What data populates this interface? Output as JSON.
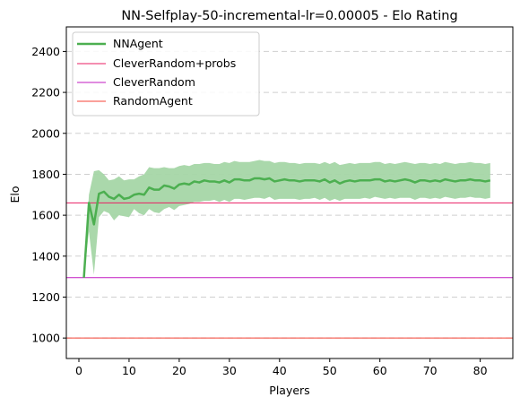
{
  "chart_data": {
    "type": "line",
    "title": "NN-Selfplay-50-incremental-lr=0.00005 - Elo Rating",
    "xlabel": "Players",
    "ylabel": "Elo",
    "xlim": [
      -2.5,
      86.5
    ],
    "ylim": [
      900,
      2520
    ],
    "xticks": [
      0,
      10,
      20,
      30,
      40,
      50,
      60,
      70,
      80
    ],
    "yticks": [
      1000,
      1200,
      1400,
      1600,
      1800,
      2000,
      2200,
      2400
    ],
    "grid": "horizontal-dashed",
    "legend_position": "top-left",
    "series": [
      {
        "name": "NNAgent",
        "color": "#4caf50",
        "band_color": "#a5d6a7",
        "x": [
          1,
          2,
          3,
          4,
          5,
          6,
          7,
          8,
          9,
          10,
          11,
          12,
          13,
          14,
          15,
          16,
          17,
          18,
          19,
          20,
          21,
          22,
          23,
          24,
          25,
          26,
          27,
          28,
          29,
          30,
          31,
          32,
          33,
          34,
          35,
          36,
          37,
          38,
          39,
          40,
          41,
          42,
          43,
          44,
          45,
          46,
          47,
          48,
          49,
          50,
          51,
          52,
          53,
          54,
          55,
          56,
          57,
          58,
          59,
          60,
          61,
          62,
          63,
          64,
          65,
          66,
          67,
          68,
          69,
          70,
          71,
          72,
          73,
          74,
          75,
          76,
          77,
          78,
          79,
          80,
          81,
          82
        ],
        "values": [
          1295,
          1660,
          1555,
          1705,
          1715,
          1690,
          1680,
          1700,
          1680,
          1685,
          1700,
          1705,
          1700,
          1735,
          1725,
          1725,
          1745,
          1740,
          1730,
          1750,
          1755,
          1750,
          1765,
          1760,
          1770,
          1765,
          1765,
          1760,
          1770,
          1760,
          1775,
          1775,
          1770,
          1770,
          1780,
          1780,
          1775,
          1780,
          1765,
          1770,
          1775,
          1770,
          1770,
          1765,
          1770,
          1770,
          1770,
          1765,
          1775,
          1760,
          1770,
          1755,
          1765,
          1770,
          1765,
          1770,
          1770,
          1770,
          1775,
          1775,
          1765,
          1770,
          1765,
          1770,
          1775,
          1770,
          1760,
          1770,
          1770,
          1765,
          1770,
          1765,
          1775,
          1770,
          1765,
          1770,
          1770,
          1775,
          1770,
          1770,
          1765,
          1770
        ],
        "lower": [
          1295,
          1520,
          1310,
          1590,
          1620,
          1610,
          1575,
          1600,
          1595,
          1590,
          1630,
          1610,
          1600,
          1630,
          1615,
          1610,
          1630,
          1640,
          1625,
          1645,
          1650,
          1655,
          1665,
          1665,
          1670,
          1670,
          1675,
          1665,
          1675,
          1665,
          1680,
          1680,
          1675,
          1680,
          1685,
          1685,
          1680,
          1690,
          1675,
          1680,
          1680,
          1680,
          1680,
          1675,
          1680,
          1680,
          1685,
          1675,
          1685,
          1670,
          1680,
          1670,
          1680,
          1680,
          1680,
          1680,
          1685,
          1680,
          1690,
          1685,
          1680,
          1685,
          1680,
          1685,
          1685,
          1685,
          1675,
          1685,
          1685,
          1680,
          1685,
          1680,
          1690,
          1685,
          1680,
          1685,
          1685,
          1690,
          1685,
          1685,
          1680,
          1685
        ],
        "upper": [
          1295,
          1700,
          1815,
          1820,
          1800,
          1770,
          1775,
          1790,
          1770,
          1775,
          1775,
          1790,
          1800,
          1835,
          1830,
          1830,
          1835,
          1830,
          1830,
          1840,
          1845,
          1840,
          1850,
          1850,
          1855,
          1855,
          1850,
          1850,
          1860,
          1855,
          1865,
          1860,
          1860,
          1860,
          1865,
          1870,
          1865,
          1865,
          1855,
          1860,
          1860,
          1855,
          1855,
          1850,
          1855,
          1855,
          1855,
          1850,
          1860,
          1850,
          1860,
          1845,
          1850,
          1855,
          1850,
          1855,
          1855,
          1855,
          1860,
          1860,
          1850,
          1855,
          1850,
          1855,
          1860,
          1855,
          1850,
          1855,
          1855,
          1850,
          1855,
          1850,
          1860,
          1855,
          1850,
          1855,
          1855,
          1860,
          1855,
          1855,
          1850,
          1855
        ]
      }
    ],
    "reference_lines": [
      {
        "name": "CleverRandom+probs",
        "value": 1660,
        "color": "#e91e63"
      },
      {
        "name": "CleverRandom",
        "value": 1295,
        "color": "#c218c2"
      },
      {
        "name": "RandomAgent",
        "value": 1000,
        "color": "#f44336"
      }
    ]
  }
}
